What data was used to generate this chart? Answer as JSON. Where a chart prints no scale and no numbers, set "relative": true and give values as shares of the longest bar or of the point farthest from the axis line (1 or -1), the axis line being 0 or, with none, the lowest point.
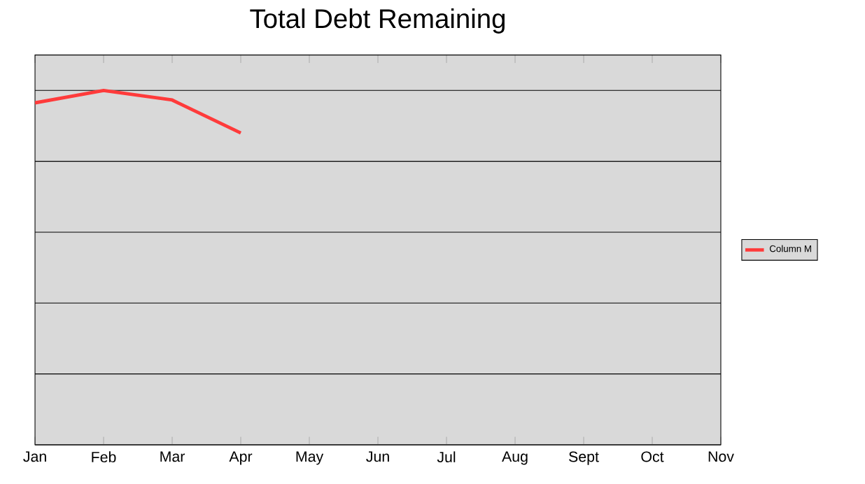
{
  "chart_data": {
    "type": "line",
    "title": "Total Debt Remaining",
    "relative": true,
    "categories": [
      "Jan",
      "Feb",
      "Mar",
      "Apr",
      "May",
      "Jun",
      "Jul",
      "Aug",
      "Sept",
      "Oct",
      "Nov"
    ],
    "series": [
      {
        "name": "Column M",
        "color": "#ff3b3b",
        "values": [
          0.965,
          1,
          0.973,
          0.88,
          null,
          null,
          null,
          null,
          null,
          null,
          null
        ]
      }
    ],
    "grid": "y",
    "legend": "right",
    "marker": "none",
    "line_style": "solid"
  }
}
